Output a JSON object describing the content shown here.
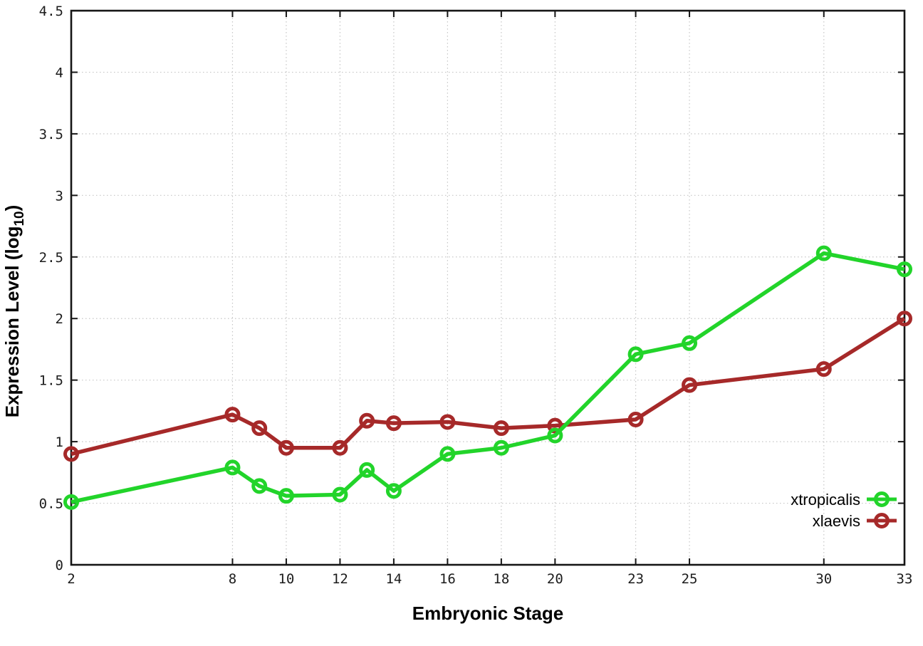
{
  "chart_data": {
    "type": "line",
    "title": "",
    "xlabel": "Embryonic Stage",
    "ylabel": "Expression Level (log10)",
    "ylabel_parts": {
      "main": "Expression Level (log",
      "sub": "10",
      "close": ")"
    },
    "xlim": [
      2,
      33
    ],
    "ylim": [
      0,
      4.5
    ],
    "x_ticks": [
      2,
      8,
      10,
      12,
      14,
      16,
      18,
      20,
      23,
      25,
      30,
      33
    ],
    "y_ticks": [
      0,
      0.5,
      1,
      1.5,
      2,
      2.5,
      3,
      3.5,
      4,
      4.5
    ],
    "grid": true,
    "grid_style": "dotted",
    "grid_color": "#c6c6c6",
    "background": "#ffffff",
    "marker": "open-circle",
    "legend_position": "inside-bottom-right",
    "x": [
      2,
      8,
      9,
      10,
      12,
      13,
      14,
      16,
      18,
      20,
      23,
      25,
      30,
      33
    ],
    "series": [
      {
        "name": "xtropicalis",
        "color": "#22d42a",
        "values": [
          0.51,
          0.79,
          0.64,
          0.56,
          0.57,
          0.77,
          0.6,
          0.9,
          0.95,
          1.05,
          1.71,
          1.8,
          2.53,
          2.4
        ]
      },
      {
        "name": "xlaevis",
        "color": "#a62929",
        "values": [
          0.9,
          1.22,
          1.11,
          0.95,
          0.95,
          1.17,
          1.15,
          1.16,
          1.11,
          1.13,
          1.18,
          1.46,
          1.59,
          2.0
        ]
      }
    ]
  }
}
